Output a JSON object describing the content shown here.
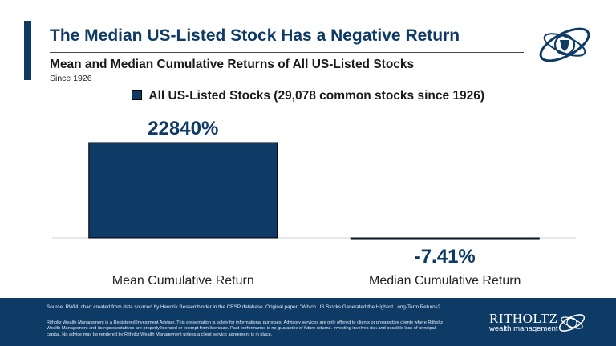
{
  "header": {
    "title": "The Median US-Listed Stock Has a Negative Return",
    "subtitle": "Mean and Median Cumulative Returns of All US-Listed Stocks",
    "since": "Since 1926"
  },
  "chart_data": {
    "type": "bar",
    "categories": [
      "Mean Cumulative Return",
      "Median Cumulative Return"
    ],
    "series": [
      {
        "name": "All US-Listed Stocks (29,078 common stocks since 1926)",
        "values": [
          22840,
          -7.41
        ]
      }
    ],
    "data_labels": [
      "22840%",
      "-7.41%"
    ],
    "colors": {
      "bar": "#0e3a66"
    }
  },
  "footer": {
    "source": "Source: RWM, chart created from data sourced by Hendrik Bessembinder in the CRSP database. Original paper: \"Which US Stocks Generated the Highest Long-Term Returns?",
    "disclaimer": "Ritholtz Wealth Management is a Registered Investment Adviser. This presentation is solely for informational purposes. Advisory services are only offered to clients or prospective clients where Ritholtz Wealth Management and its representatives are properly licensed or exempt from licensure. Past performance is no guarantee of future returns. Investing involves risk and possible loss of principal capital. No advice may be rendered by Ritholtz Wealth Management unless a client service agreement is in place.",
    "brand_name": "RITHOLTZ",
    "brand_sub": "wealth management"
  }
}
